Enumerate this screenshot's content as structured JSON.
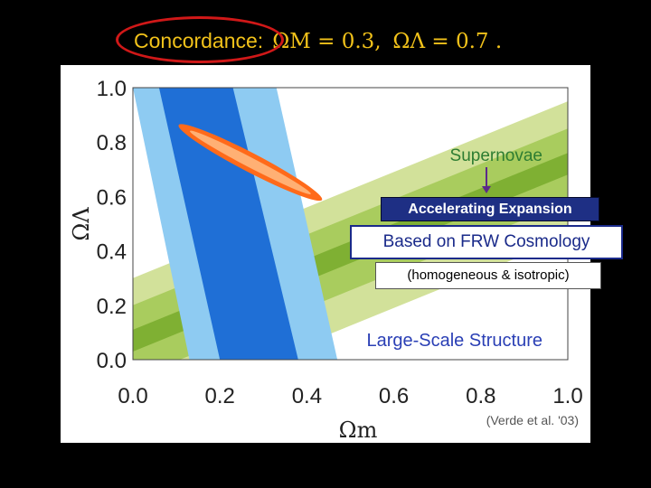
{
  "title": {
    "label": "Concordance:",
    "omega_m": "ΩM = 0.3,",
    "omega_l": "ΩΛ = 0.7 ."
  },
  "boxes": {
    "accelerating": "Accelerating Expansion",
    "frw": "Based on FRW Cosmology",
    "homogeneous": "(homogeneous & isotropic)"
  },
  "chart_data": {
    "type": "contour",
    "xlabel": "Ωm",
    "ylabel": "ΩΛ",
    "xlim": [
      0.0,
      1.0
    ],
    "ylim": [
      0.0,
      1.0
    ],
    "xticks": [
      "0.0",
      "0.2",
      "0.4",
      "0.6",
      "0.8",
      "1.0"
    ],
    "yticks": [
      "0.0",
      "0.2",
      "0.4",
      "0.6",
      "0.8",
      "1.0"
    ],
    "annotations": [
      "Supernovae",
      "Large-Scale Structure",
      "(Verde et al. '03)"
    ],
    "colors": {
      "supernovae_outer": "#d2e19a",
      "supernovae_mid": "#a9cc5e",
      "supernovae_inner": "#7fb033",
      "lss_outer": "#8ecbf2",
      "lss_mid": "#3f9ee6",
      "lss_inner": "#1f6fd6",
      "combined_outer": "#ff6a1a",
      "combined_inner": "#ffb074",
      "supernovae_label": "#2e7d32",
      "lss_label": "#2a3fb5"
    },
    "regions": {
      "supernovae_band": [
        {
          "name": "",
          "sigma": 3,
          "lower": [
            [
              0.0,
              -0.2
            ],
            [
              1.0,
              0.45
            ]
          ],
          "upper": [
            [
              0.0,
              0.3
            ],
            [
              1.0,
              0.95
            ]
          ]
        },
        {
          "name": "",
          "sigma": 2,
          "lower": [
            [
              0.0,
              -0.07
            ],
            [
              1.0,
              0.58
            ]
          ],
          "upper": [
            [
              0.0,
              0.2
            ],
            [
              1.0,
              0.85
            ]
          ]
        },
        {
          "name": "",
          "sigma": 1,
          "lower": [
            [
              0.0,
              0.03
            ],
            [
              1.0,
              0.68
            ]
          ],
          "upper": [
            [
              0.0,
              0.11
            ],
            [
              1.0,
              0.76
            ]
          ]
        }
      ],
      "lss_band": [
        {
          "name": "",
          "sigma": 2,
          "left": [
            [
              0.0,
              1.0
            ],
            [
              0.13,
              0.0
            ]
          ],
          "right": [
            [
              0.33,
              1.0
            ],
            [
              0.47,
              0.0
            ]
          ]
        },
        {
          "name": "",
          "sigma": 1,
          "left": [
            [
              0.06,
              1.0
            ],
            [
              0.2,
              0.0
            ]
          ],
          "right": [
            [
              0.23,
              1.0
            ],
            [
              0.38,
              0.0
            ]
          ]
        }
      ],
      "combined": {
        "start": [
          0.12,
          0.85
        ],
        "end": [
          0.42,
          0.6
        ],
        "outer_half_width": 0.035,
        "inner_half_width": 0.018
      }
    }
  }
}
